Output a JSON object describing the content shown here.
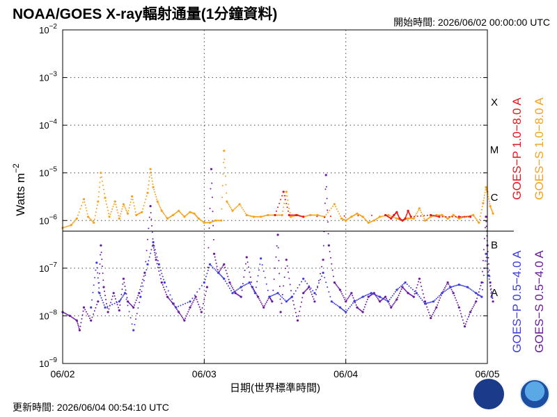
{
  "header": {
    "title": "NOAA/GOES X-ray輻射通量(1分鐘資料)",
    "start_time": "開始時間:  2026/06/02 00:00:00 UTC"
  },
  "footer": {
    "updated": "更新時間:  2026/06/04 00:54:10 UTC"
  },
  "logos": {
    "left": "noaa-emblem-icon",
    "right": "noaa-logo-icon"
  },
  "chart_data": {
    "type": "scatter",
    "title": "NOAA/GOES X-ray輻射通量(1分鐘資料)",
    "xlabel": "日期(世界標準時間)",
    "ylabel": "Watts m",
    "ylabel_sup": "−2",
    "yscale": "log",
    "ylim": [
      1e-09,
      0.01
    ],
    "xlim": [
      "06/02",
      "06/05"
    ],
    "x_ticks": [
      "06/02",
      "06/03",
      "06/04",
      "06/05"
    ],
    "y_ticks": [
      {
        "base": "10",
        "exp": "−9"
      },
      {
        "base": "10",
        "exp": "−8"
      },
      {
        "base": "10",
        "exp": "−7"
      },
      {
        "base": "10",
        "exp": "−6"
      },
      {
        "base": "10",
        "exp": "−5"
      },
      {
        "base": "10",
        "exp": "−4"
      },
      {
        "base": "10",
        "exp": "−3"
      },
      {
        "base": "10",
        "exp": "−2"
      }
    ],
    "flare_classes": [
      "A",
      "B",
      "C",
      "M",
      "X"
    ],
    "grid": true,
    "divider_at": 6e-07,
    "legend": {
      "upper": [
        {
          "label": "GOES−P 1.0−8.0 A",
          "color": "#e8161b"
        },
        {
          "label": "GOES−S 1.0−8.0 A",
          "color": "#f5a21c"
        }
      ],
      "lower": [
        {
          "label": "GOES−P 0.5−4.0 A",
          "color": "#3c3ce0"
        },
        {
          "label": "GOES−S 0.5−4.0 A",
          "color": "#6a1aa0"
        }
      ]
    },
    "series": [
      {
        "name": "GOES−S 1.0−8.0 A",
        "color": "#f5a21c",
        "points": [
          [
            0.0,
            7e-07
          ],
          [
            0.06,
            8e-07
          ],
          [
            0.1,
            1.1e-06
          ],
          [
            0.15,
            2.8e-06
          ],
          [
            0.18,
            1.2e-06
          ],
          [
            0.22,
            9e-07
          ],
          [
            0.25,
            2.5e-06
          ],
          [
            0.27,
            1e-05
          ],
          [
            0.3,
            3e-06
          ],
          [
            0.33,
            1.2e-06
          ],
          [
            0.37,
            2.5e-06
          ],
          [
            0.4,
            1.1e-06
          ],
          [
            0.43,
            2.2e-06
          ],
          [
            0.46,
            1.4e-06
          ],
          [
            0.49,
            3.2e-06
          ],
          [
            0.52,
            1.3e-06
          ],
          [
            0.56,
            1.5e-06
          ],
          [
            0.6,
            3.8e-06
          ],
          [
            0.62,
            1.2e-05
          ],
          [
            0.64,
            5e-06
          ],
          [
            0.67,
            2.5e-06
          ],
          [
            0.7,
            1.6e-06
          ],
          [
            0.74,
            1.1e-06
          ],
          [
            0.78,
            1.3e-06
          ],
          [
            0.82,
            1.6e-06
          ],
          [
            0.86,
            1.2e-06
          ],
          [
            0.9,
            1.5e-06
          ],
          [
            0.93,
            1.4e-06
          ],
          [
            0.96,
            1.1e-06
          ],
          [
            1.0,
            9e-07
          ],
          [
            1.04,
            9e-07
          ],
          [
            1.08,
            1e-06
          ],
          [
            1.12,
            1e-06
          ],
          [
            1.14,
            2.9e-05
          ],
          [
            1.16,
            2.5e-06
          ],
          [
            1.2,
            1.6e-06
          ],
          [
            1.25,
            2.2e-06
          ],
          [
            1.3,
            1.3e-06
          ],
          [
            1.35,
            1.2e-06
          ],
          [
            1.4,
            1.2e-06
          ],
          [
            1.45,
            1.3e-06
          ],
          [
            1.5,
            1.3e-06
          ],
          [
            1.55,
            1.3e-06
          ],
          [
            1.58,
            4e-06
          ],
          [
            1.61,
            1.2e-06
          ],
          [
            1.66,
            1.3e-06
          ],
          [
            1.7,
            1.2e-06
          ],
          [
            1.75,
            1.3e-06
          ],
          [
            1.8,
            1.3e-06
          ],
          [
            1.85,
            1.2e-06
          ],
          [
            1.92,
            2.2e-06
          ],
          [
            1.97,
            1.1e-06
          ],
          [
            2.0,
            1e-06
          ],
          [
            2.04,
            1.2e-06
          ],
          [
            2.08,
            1.4e-06
          ],
          [
            2.12,
            1.2e-06
          ],
          [
            2.16,
            9e-07
          ],
          [
            2.2,
            1e-06
          ],
          [
            2.24,
            1.2e-06
          ],
          [
            2.3,
            1.3e-06
          ],
          [
            2.36,
            1.1e-06
          ],
          [
            2.4,
            1e-06
          ],
          [
            2.44,
            1.1e-06
          ],
          [
            2.48,
            1.1e-06
          ],
          [
            2.52,
            1.8e-06
          ],
          [
            2.56,
            1e-06
          ],
          [
            2.6,
            1.2e-06
          ],
          [
            2.64,
            1.3e-06
          ],
          [
            2.68,
            1.3e-06
          ],
          [
            2.72,
            1.1e-06
          ],
          [
            2.76,
            1.3e-06
          ],
          [
            2.8,
            1.1e-06
          ],
          [
            2.84,
            1.2e-06
          ],
          [
            2.9,
            1.3e-06
          ],
          [
            2.94,
            9e-07
          ],
          [
            2.97,
            2.3e-06
          ],
          [
            2.99,
            5e-06
          ],
          [
            3.0,
            4e-06
          ],
          [
            3.02,
            2e-06
          ],
          [
            3.04,
            1.4e-06
          ]
        ]
      },
      {
        "name": "GOES−P 1.0−8.0 A",
        "color": "#e8161b",
        "points": [
          [
            1.5,
            1.3e-06
          ],
          [
            1.56,
            4e-06
          ],
          [
            1.6,
            1.3e-06
          ],
          [
            1.65,
            1.3e-06
          ],
          [
            1.7,
            1.2e-06
          ],
          [
            2.28,
            1.3e-06
          ],
          [
            2.32,
            1.1e-06
          ],
          [
            2.34,
            1.3e-06
          ],
          [
            2.36,
            1.5e-06
          ],
          [
            2.38,
            1.1e-06
          ],
          [
            2.4,
            1e-06
          ],
          [
            2.42,
            1.1e-06
          ],
          [
            2.44,
            1.6e-06
          ],
          [
            2.46,
            1.2e-06
          ],
          [
            2.6,
            1.3e-06
          ],
          [
            2.66,
            1.2e-06
          ],
          [
            2.8,
            1.2e-06
          ],
          [
            2.88,
            1.2e-06
          ]
        ]
      },
      {
        "name": "GOES−S 0.5−4.0 A",
        "color": "#6a1aa0",
        "points": [
          [
            0.0,
            1.2e-08
          ],
          [
            0.05,
            1e-08
          ],
          [
            0.1,
            8e-09
          ],
          [
            0.12,
            5e-09
          ],
          [
            0.15,
            1.5e-08
          ],
          [
            0.2,
            8e-09
          ],
          [
            0.25,
            2e-08
          ],
          [
            0.27,
            3e-07
          ],
          [
            0.29,
            4e-08
          ],
          [
            0.32,
            1.2e-08
          ],
          [
            0.36,
            3e-08
          ],
          [
            0.4,
            1.3e-08
          ],
          [
            0.43,
            6e-08
          ],
          [
            0.46,
            2e-08
          ],
          [
            0.5,
            1.5e-08
          ],
          [
            0.54,
            3e-08
          ],
          [
            0.58,
            8e-08
          ],
          [
            0.62,
            2e-06
          ],
          [
            0.64,
            3e-07
          ],
          [
            0.66,
            1.5e-07
          ],
          [
            0.7,
            5e-08
          ],
          [
            0.74,
            2.5e-08
          ],
          [
            0.78,
            1.8e-08
          ],
          [
            0.82,
            1.2e-08
          ],
          [
            0.86,
            8e-09
          ],
          [
            0.9,
            1.5e-08
          ],
          [
            0.94,
            2.5e-08
          ],
          [
            0.98,
            1.2e-08
          ],
          [
            1.02,
            4e-08
          ],
          [
            1.05,
            1.2e-05
          ],
          [
            1.07,
            2e-07
          ],
          [
            1.1,
            8e-08
          ],
          [
            1.14,
            1.2e-07
          ],
          [
            1.18,
            5e-08
          ],
          [
            1.22,
            3e-08
          ],
          [
            1.26,
            2.5e-08
          ],
          [
            1.3,
            1.7e-07
          ],
          [
            1.34,
            4e-08
          ],
          [
            1.38,
            2.5e-08
          ],
          [
            1.42,
            1.5e-08
          ],
          [
            1.46,
            2.5e-08
          ],
          [
            1.48,
            2e-08
          ],
          [
            1.52,
            5e-07
          ],
          [
            1.54,
            1.2e-08
          ],
          [
            1.58,
            1.5e-07
          ],
          [
            1.62,
            2.5e-08
          ],
          [
            1.66,
            8e-09
          ],
          [
            1.7,
            3e-08
          ],
          [
            1.74,
            4e-08
          ],
          [
            1.78,
            2e-08
          ],
          [
            1.84,
            1.5e-07
          ],
          [
            1.86,
            9e-06
          ],
          [
            1.88,
            3e-07
          ],
          [
            1.92,
            5e-08
          ],
          [
            1.96,
            3.5e-08
          ],
          [
            2.0,
            2e-08
          ],
          [
            2.04,
            3e-08
          ],
          [
            2.08,
            1.5e-08
          ],
          [
            2.12,
            1.2e-08
          ],
          [
            2.16,
            2.5e-08
          ],
          [
            2.2,
            3e-08
          ],
          [
            2.24,
            2e-08
          ],
          [
            2.28,
            2.5e-08
          ],
          [
            2.32,
            1.5e-08
          ],
          [
            2.36,
            2.2e-08
          ],
          [
            2.4,
            4e-08
          ],
          [
            2.44,
            3e-08
          ],
          [
            2.48,
            2.5e-08
          ],
          [
            2.52,
            6e-08
          ],
          [
            2.56,
            2e-08
          ],
          [
            2.6,
            9e-09
          ],
          [
            2.64,
            1.5e-08
          ],
          [
            2.68,
            3e-08
          ],
          [
            2.72,
            5e-08
          ],
          [
            2.76,
            3e-08
          ],
          [
            2.8,
            1.5e-08
          ],
          [
            2.84,
            6e-09
          ],
          [
            2.88,
            1.2e-08
          ],
          [
            2.92,
            2e-08
          ],
          [
            2.96,
            5e-08
          ],
          [
            2.99,
            1.2e-06
          ],
          [
            3.0,
            3e-07
          ],
          [
            3.02,
            5e-08
          ],
          [
            3.04,
            2e-08
          ]
        ]
      },
      {
        "name": "GOES−P 0.5−4.0 A",
        "color": "#3c3ce0",
        "points": [
          [
            0.2,
            1.5e-08
          ],
          [
            0.24,
            1.3e-07
          ],
          [
            0.26,
            3e-08
          ],
          [
            0.3,
            1.5e-08
          ],
          [
            0.4,
            2e-08
          ],
          [
            0.44,
            3e-08
          ],
          [
            0.5,
            5e-09
          ],
          [
            0.55,
            2.5e-08
          ],
          [
            0.6,
            1.2e-07
          ],
          [
            0.64,
            3.5e-07
          ],
          [
            0.68,
            1.2e-07
          ],
          [
            0.72,
            5e-08
          ],
          [
            0.8,
            1.5e-08
          ],
          [
            0.9,
            2e-08
          ],
          [
            1.0,
            5e-08
          ],
          [
            1.04,
            1.2e-07
          ],
          [
            1.1,
            8e-08
          ],
          [
            1.14,
            6e-08
          ],
          [
            1.2,
            3e-08
          ],
          [
            1.26,
            4e-08
          ],
          [
            1.32,
            5e-08
          ],
          [
            1.36,
            3e-08
          ],
          [
            1.4,
            1.6e-07
          ],
          [
            1.46,
            2.5e-08
          ],
          [
            1.52,
            3e-08
          ],
          [
            1.58,
            2e-08
          ],
          [
            1.62,
            2.5e-08
          ],
          [
            1.7,
            6e-08
          ],
          [
            1.78,
            3e-08
          ],
          [
            1.84,
            8e-08
          ],
          [
            1.9,
            2e-08
          ],
          [
            1.96,
            1.5e-08
          ],
          [
            2.0,
            1.2e-08
          ],
          [
            2.06,
            2e-08
          ],
          [
            2.12,
            2.5e-08
          ],
          [
            2.18,
            3e-08
          ],
          [
            2.24,
            2.5e-08
          ],
          [
            2.3,
            2e-08
          ],
          [
            2.36,
            3.5e-08
          ],
          [
            2.42,
            5e-08
          ],
          [
            2.5,
            3e-08
          ],
          [
            2.56,
            1.8e-08
          ],
          [
            2.62,
            2e-08
          ],
          [
            2.68,
            3e-08
          ],
          [
            2.74,
            4e-08
          ],
          [
            2.8,
            4.5e-08
          ],
          [
            2.86,
            4e-08
          ],
          [
            2.92,
            3e-08
          ],
          [
            2.96,
            2.5e-08
          ],
          [
            2.99,
            2e-07
          ],
          [
            3.01,
            7e-08
          ],
          [
            3.03,
            2.5e-08
          ]
        ]
      }
    ]
  }
}
